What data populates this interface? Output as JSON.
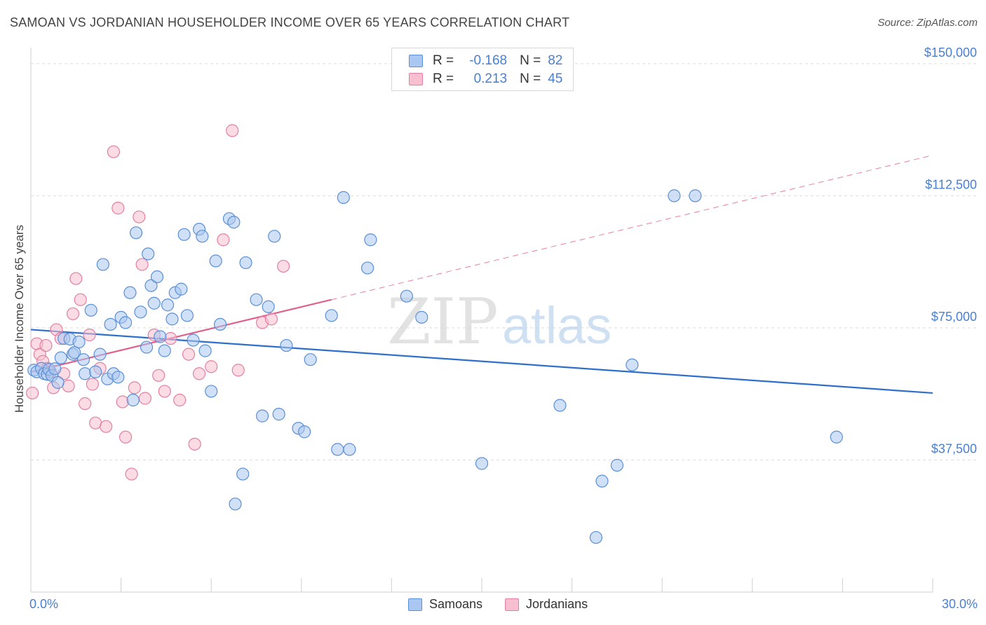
{
  "header": {
    "title": "SAMOAN VS JORDANIAN HOUSEHOLDER INCOME OVER 65 YEARS CORRELATION CHART",
    "source": "Source: ZipAtlas.com"
  },
  "watermark": {
    "zip": "ZIP",
    "atlas": "atlas"
  },
  "legend": {
    "r_label": "R =",
    "n_label": "N =",
    "rows": [
      {
        "r": "-0.168",
        "n": "82"
      },
      {
        "r": "0.213",
        "n": "45"
      }
    ]
  },
  "x_axis": {
    "min_label": "0.0%",
    "max_label": "30.0%"
  },
  "chart_data": {
    "type": "scatter",
    "title": "SAMOAN VS JORDANIAN HOUSEHOLDER INCOME OVER 65 YEARS CORRELATION CHART",
    "xlabel": "",
    "ylabel": "Householder Income Over 65 years",
    "xlim": [
      0,
      30
    ],
    "ylim": [
      0,
      153750
    ],
    "x_tick_values": [
      0,
      3,
      6,
      9,
      12,
      15,
      18,
      21,
      24,
      27,
      30
    ],
    "y_ticks": [
      {
        "value": 37500,
        "label": "$37,500"
      },
      {
        "value": 75000,
        "label": "$75,000"
      },
      {
        "value": 112500,
        "label": "$112,500"
      },
      {
        "value": 150000,
        "label": "$150,000"
      }
    ],
    "grid": "horizontal dashed",
    "legend_position": "top-center",
    "colors": {
      "samoans_fill": "#a9c7f0",
      "samoans_stroke": "#5b8fd6",
      "samoans_line": "#2f6fcc",
      "jordanians_fill": "#f7bfd0",
      "jordanians_stroke": "#e47fa1",
      "jordanians_line": "#e0608c",
      "axis_text": "#4a7fd0"
    },
    "series": [
      {
        "name": "Samoans",
        "points": [
          [
            0.1,
            63000
          ],
          [
            0.2,
            62500
          ],
          [
            0.35,
            63500
          ],
          [
            0.45,
            62000
          ],
          [
            0.55,
            61800
          ],
          [
            0.6,
            63200
          ],
          [
            0.7,
            61500
          ],
          [
            0.8,
            63400
          ],
          [
            0.9,
            59500
          ],
          [
            1.0,
            66500
          ],
          [
            1.1,
            72000
          ],
          [
            1.3,
            71800
          ],
          [
            1.4,
            67500
          ],
          [
            1.45,
            68000
          ],
          [
            1.6,
            71000
          ],
          [
            1.75,
            66000
          ],
          [
            1.8,
            62000
          ],
          [
            2.0,
            80000
          ],
          [
            2.15,
            62500
          ],
          [
            2.3,
            67500
          ],
          [
            2.4,
            93000
          ],
          [
            2.55,
            60500
          ],
          [
            2.65,
            76000
          ],
          [
            2.75,
            62000
          ],
          [
            2.9,
            61000
          ],
          [
            3.0,
            78000
          ],
          [
            3.15,
            76500
          ],
          [
            3.3,
            85000
          ],
          [
            3.4,
            54500
          ],
          [
            3.5,
            102000
          ],
          [
            3.65,
            79500
          ],
          [
            3.85,
            69500
          ],
          [
            3.9,
            96000
          ],
          [
            4.0,
            87000
          ],
          [
            4.1,
            82000
          ],
          [
            4.2,
            89500
          ],
          [
            4.3,
            72500
          ],
          [
            4.45,
            68500
          ],
          [
            4.55,
            81500
          ],
          [
            4.7,
            77500
          ],
          [
            4.8,
            85000
          ],
          [
            5.0,
            86000
          ],
          [
            5.1,
            101500
          ],
          [
            5.2,
            78500
          ],
          [
            5.4,
            71500
          ],
          [
            5.6,
            103000
          ],
          [
            5.7,
            101000
          ],
          [
            5.8,
            68500
          ],
          [
            6.0,
            57000
          ],
          [
            6.15,
            94000
          ],
          [
            6.3,
            76000
          ],
          [
            6.6,
            106000
          ],
          [
            6.75,
            105000
          ],
          [
            6.8,
            25000
          ],
          [
            7.05,
            33500
          ],
          [
            7.15,
            93500
          ],
          [
            7.5,
            83000
          ],
          [
            7.7,
            50000
          ],
          [
            7.9,
            81000
          ],
          [
            8.1,
            101000
          ],
          [
            8.25,
            50500
          ],
          [
            8.5,
            70000
          ],
          [
            8.9,
            46500
          ],
          [
            9.1,
            45500
          ],
          [
            9.3,
            66000
          ],
          [
            10.0,
            78500
          ],
          [
            10.2,
            40500
          ],
          [
            10.4,
            112000
          ],
          [
            10.6,
            40500
          ],
          [
            11.3,
            100000
          ],
          [
            11.2,
            92000
          ],
          [
            12.5,
            84000
          ],
          [
            13.0,
            78000
          ],
          [
            15.0,
            36500
          ],
          [
            17.6,
            53000
          ],
          [
            18.8,
            15500
          ],
          [
            19.0,
            31500
          ],
          [
            19.5,
            36000
          ],
          [
            20.0,
            64500
          ],
          [
            21.4,
            112500
          ],
          [
            22.1,
            112500
          ],
          [
            26.8,
            44000
          ]
        ]
      },
      {
        "name": "Jordanians",
        "points": [
          [
            0.05,
            56500
          ],
          [
            0.2,
            70500
          ],
          [
            0.3,
            67500
          ],
          [
            0.4,
            65500
          ],
          [
            0.5,
            70000
          ],
          [
            0.55,
            63500
          ],
          [
            0.65,
            62500
          ],
          [
            0.75,
            58000
          ],
          [
            0.85,
            74500
          ],
          [
            1.0,
            72000
          ],
          [
            1.1,
            62000
          ],
          [
            1.25,
            58500
          ],
          [
            1.4,
            79000
          ],
          [
            1.5,
            89000
          ],
          [
            1.65,
            83000
          ],
          [
            1.8,
            53500
          ],
          [
            1.95,
            73000
          ],
          [
            2.05,
            59000
          ],
          [
            2.15,
            48000
          ],
          [
            2.3,
            63500
          ],
          [
            2.5,
            47000
          ],
          [
            2.75,
            125000
          ],
          [
            2.9,
            109000
          ],
          [
            3.05,
            54000
          ],
          [
            3.15,
            44000
          ],
          [
            3.35,
            33500
          ],
          [
            3.45,
            58000
          ],
          [
            3.6,
            106500
          ],
          [
            3.7,
            93000
          ],
          [
            3.8,
            55000
          ],
          [
            4.1,
            73000
          ],
          [
            4.25,
            61500
          ],
          [
            4.45,
            57000
          ],
          [
            4.65,
            72000
          ],
          [
            4.95,
            54500
          ],
          [
            5.25,
            67500
          ],
          [
            5.45,
            42000
          ],
          [
            5.6,
            62000
          ],
          [
            6.0,
            64000
          ],
          [
            6.4,
            100000
          ],
          [
            6.9,
            63000
          ],
          [
            7.7,
            76500
          ],
          [
            8.0,
            77500
          ],
          [
            8.4,
            92500
          ],
          [
            6.7,
            131000
          ]
        ]
      }
    ],
    "trend_lines": [
      {
        "series": "Samoans",
        "x": [
          0,
          30
        ],
        "y": [
          74500,
          56500
        ],
        "style": "solid"
      },
      {
        "series": "Jordanians",
        "x": [
          0,
          10
        ],
        "y": [
          62500,
          83000
        ],
        "style": "solid"
      },
      {
        "series": "Jordanians",
        "x": [
          10,
          30
        ],
        "y": [
          83000,
          124000
        ],
        "style": "dashed"
      }
    ]
  },
  "bottom_legend": {
    "items": [
      "Samoans",
      "Jordanians"
    ]
  }
}
